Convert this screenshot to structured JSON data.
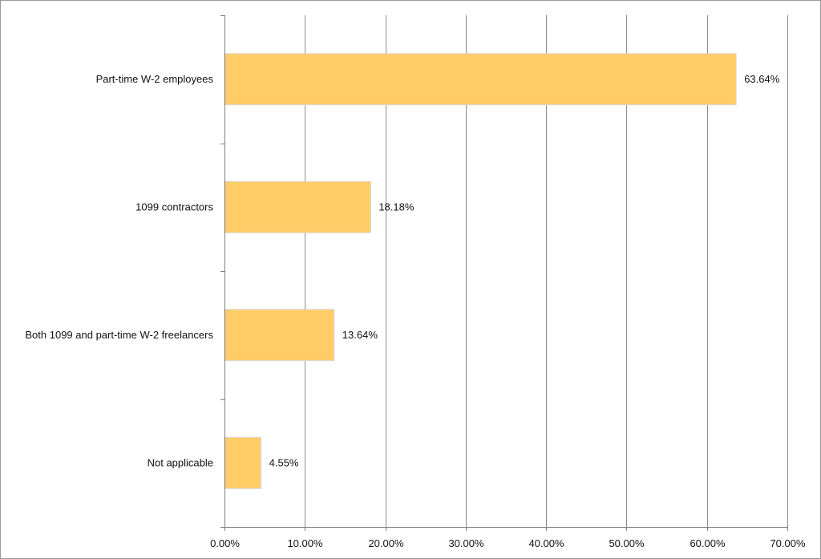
{
  "chart_data": {
    "type": "bar",
    "orientation": "horizontal",
    "categories": [
      "Part-time W-2 employees",
      "1099 contractors",
      "Both 1099 and part-time W-2 freelancers",
      "Not applicable"
    ],
    "values": [
      63.64,
      18.18,
      13.64,
      4.55
    ],
    "value_labels": [
      "63.64%",
      "18.18%",
      "13.64%",
      "4.55%"
    ],
    "xlim": [
      0,
      70
    ],
    "x_ticks": [
      0,
      10,
      20,
      30,
      40,
      50,
      60,
      70
    ],
    "x_tick_labels": [
      "0.00%",
      "10.00%",
      "20.00%",
      "30.00%",
      "40.00%",
      "50.00%",
      "60.00%",
      "70.00%"
    ],
    "grid": true,
    "legend": "none",
    "title": "",
    "xlabel": "",
    "ylabel": ""
  },
  "colors": {
    "bar_fill": "#FFCC66",
    "bar_edge": "#D9D9D9",
    "gridline": "#8C8C8C",
    "axis": "#7F7F7F"
  }
}
